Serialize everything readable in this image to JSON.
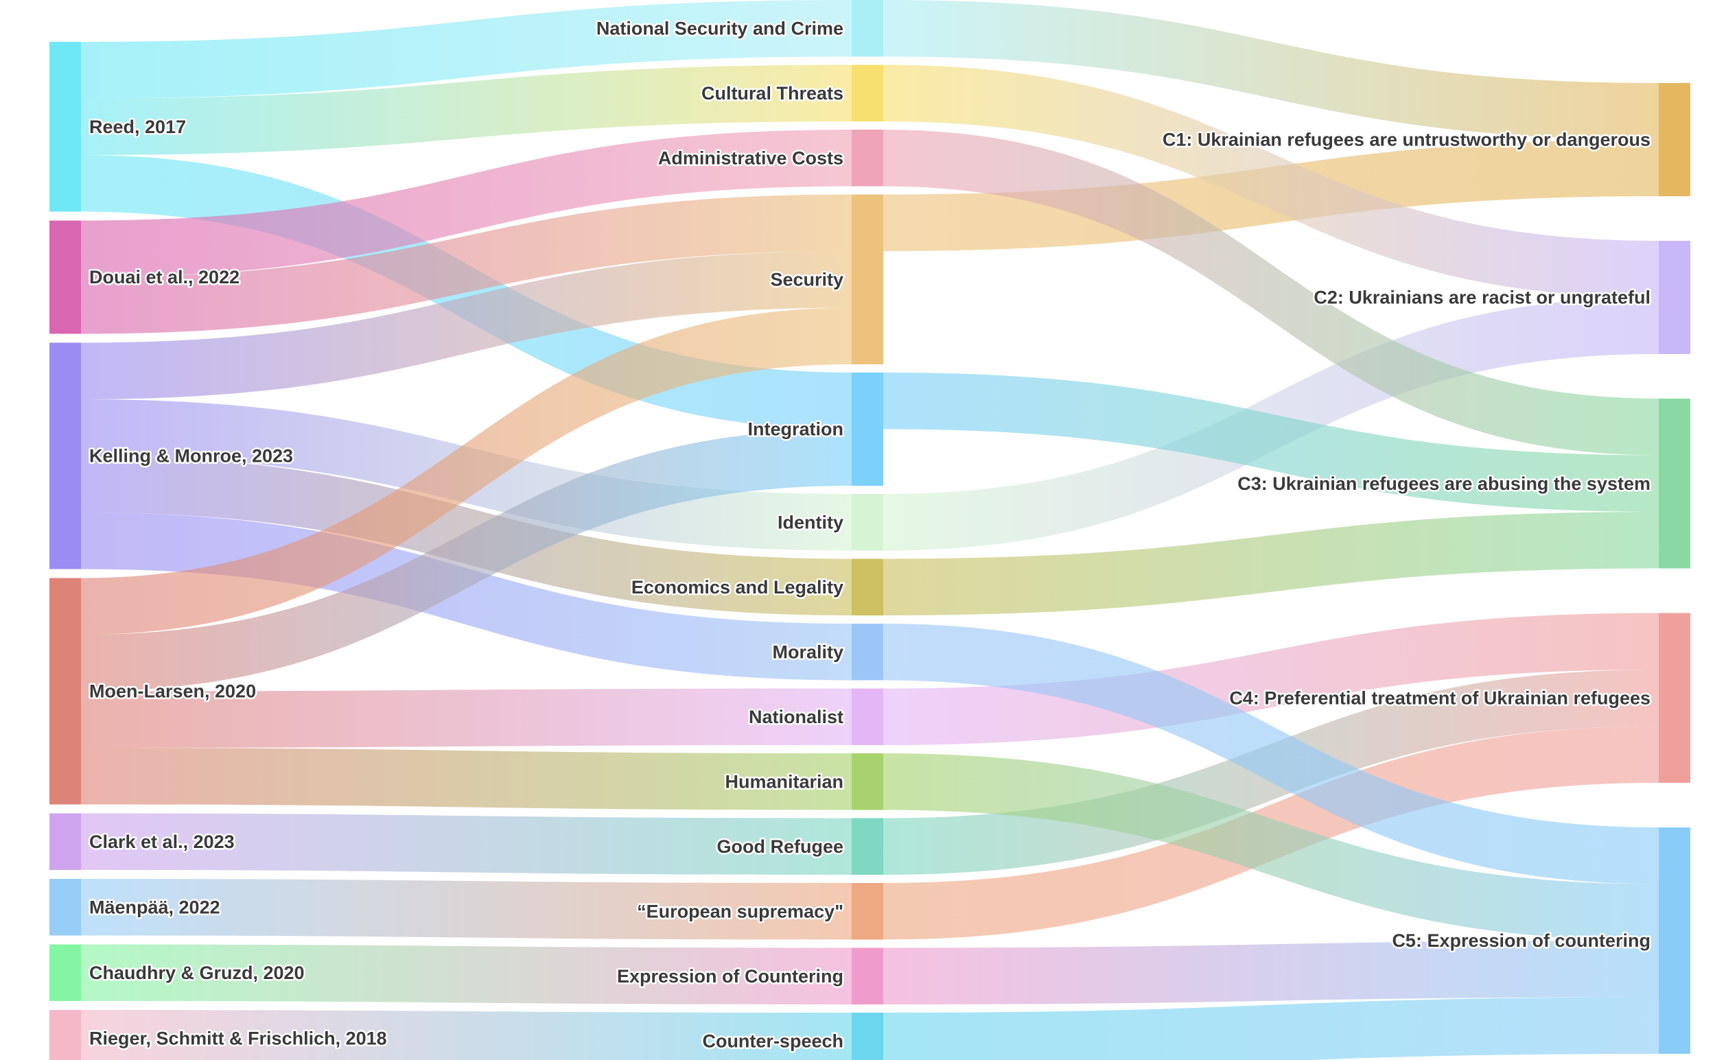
{
  "chart_data": {
    "type": "sankey",
    "columns": [
      {
        "name": "sources",
        "nodes": [
          {
            "id": "reed",
            "label": "Reed, 2017",
            "color": "#6fe8f5",
            "value": 3
          },
          {
            "id": "douai",
            "label": "Douai et al., 2022",
            "color": "#d966b0",
            "value": 2
          },
          {
            "id": "kelling",
            "label": "Kelling & Monroe, 2023",
            "color": "#9b8cf2",
            "value": 4
          },
          {
            "id": "moen",
            "label": "Moen-Larsen, 2020",
            "color": "#de8378",
            "value": 4
          },
          {
            "id": "clark",
            "label": "Clark et al., 2023",
            "color": "#cfa4ee",
            "value": 1
          },
          {
            "id": "maenpaa",
            "label": "Mäenpää, 2022",
            "color": "#98cdf8",
            "value": 1
          },
          {
            "id": "chaudhry",
            "label": "Chaudhry & Gruzd, 2020",
            "color": "#84f5a2",
            "value": 1
          },
          {
            "id": "rieger",
            "label": "Rieger, Schmitt & Frischlich, 2018",
            "color": "#f4b8c8",
            "value": 1
          }
        ]
      },
      {
        "name": "themes",
        "nodes": [
          {
            "id": "natsec",
            "label": "National Security and Crime",
            "color": "#aaeef6",
            "value": 1
          },
          {
            "id": "cultural",
            "label": "Cultural Threats",
            "color": "#f7e06f",
            "value": 1
          },
          {
            "id": "admin",
            "label": "Administrative Costs",
            "color": "#f0a4b8",
            "value": 1
          },
          {
            "id": "security",
            "label": "Security",
            "color": "#ecc27c",
            "value": 3
          },
          {
            "id": "integration",
            "label": "Integration",
            "color": "#7bd0fc",
            "value": 2
          },
          {
            "id": "identity",
            "label": "Identity",
            "color": "#d6f3d4",
            "value": 1
          },
          {
            "id": "econ",
            "label": "Economics and Legality",
            "color": "#ccc060",
            "value": 1
          },
          {
            "id": "morality",
            "label": "Morality",
            "color": "#9cc6f6",
            "value": 1
          },
          {
            "id": "nationalist",
            "label": "Nationalist",
            "color": "#e4b6f6",
            "value": 1
          },
          {
            "id": "humanitarian",
            "label": "Humanitarian",
            "color": "#a8d26e",
            "value": 1
          },
          {
            "id": "goodref",
            "label": "Good Refugee",
            "color": "#7ed8c2",
            "value": 1
          },
          {
            "id": "eusup",
            "label": "“European supremacy\"",
            "color": "#eea882",
            "value": 1
          },
          {
            "id": "exprc",
            "label": "Expression of Countering",
            "color": "#ef9ccc",
            "value": 1
          },
          {
            "id": "counter",
            "label": "Counter-speech",
            "color": "#6cd6ee",
            "value": 1
          }
        ]
      },
      {
        "name": "categories",
        "nodes": [
          {
            "id": "c1",
            "label": "C1: Ukrainian refugees are untrustworthy or dangerous",
            "color": "#e5b860",
            "value": 2
          },
          {
            "id": "c2",
            "label": "C2: Ukrainians are racist or ungrateful",
            "color": "#c7b6f8",
            "value": 2
          },
          {
            "id": "c3",
            "label": "C3: Ukrainian refugees are abusing the system",
            "color": "#8ad9a2",
            "value": 3
          },
          {
            "id": "c4",
            "label": "C4: Preferential treatment of Ukrainian refugees",
            "color": "#f0a09c",
            "value": 3
          },
          {
            "id": "c5",
            "label": "C5: Expression of countering",
            "color": "#8accf8",
            "value": 4
          }
        ]
      }
    ],
    "links": [
      {
        "source": "reed",
        "target": "natsec",
        "value": 1
      },
      {
        "source": "reed",
        "target": "cultural",
        "value": 1
      },
      {
        "source": "reed",
        "target": "integration",
        "value": 1
      },
      {
        "source": "douai",
        "target": "admin",
        "value": 1
      },
      {
        "source": "douai",
        "target": "security",
        "value": 1
      },
      {
        "source": "kelling",
        "target": "security",
        "value": 1
      },
      {
        "source": "kelling",
        "target": "identity",
        "value": 1
      },
      {
        "source": "kelling",
        "target": "econ",
        "value": 1
      },
      {
        "source": "kelling",
        "target": "morality",
        "value": 1
      },
      {
        "source": "moen",
        "target": "security",
        "value": 1
      },
      {
        "source": "moen",
        "target": "integration",
        "value": 1
      },
      {
        "source": "moen",
        "target": "nationalist",
        "value": 1
      },
      {
        "source": "moen",
        "target": "humanitarian",
        "value": 1
      },
      {
        "source": "clark",
        "target": "goodref",
        "value": 1
      },
      {
        "source": "maenpaa",
        "target": "eusup",
        "value": 1
      },
      {
        "source": "chaudhry",
        "target": "exprc",
        "value": 1
      },
      {
        "source": "rieger",
        "target": "counter",
        "value": 1
      },
      {
        "source": "natsec",
        "target": "c1",
        "value": 1
      },
      {
        "source": "security",
        "target": "c1",
        "value": 1
      },
      {
        "source": "cultural",
        "target": "c2",
        "value": 1
      },
      {
        "source": "identity",
        "target": "c2",
        "value": 1
      },
      {
        "source": "admin",
        "target": "c3",
        "value": 1
      },
      {
        "source": "integration",
        "target": "c3",
        "value": 1
      },
      {
        "source": "econ",
        "target": "c3",
        "value": 1
      },
      {
        "source": "nationalist",
        "target": "c4",
        "value": 1
      },
      {
        "source": "goodref",
        "target": "c4",
        "value": 1
      },
      {
        "source": "eusup",
        "target": "c4",
        "value": 1
      },
      {
        "source": "morality",
        "target": "c5",
        "value": 1
      },
      {
        "source": "humanitarian",
        "target": "c5",
        "value": 1
      },
      {
        "source": "exprc",
        "target": "c5",
        "value": 1
      },
      {
        "source": "counter",
        "target": "c5",
        "value": 1
      }
    ]
  }
}
